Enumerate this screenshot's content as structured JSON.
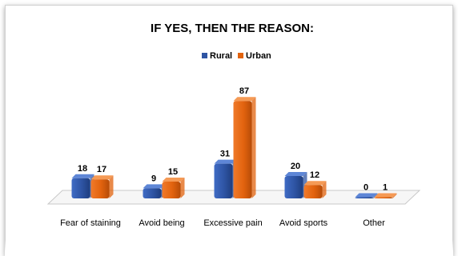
{
  "chart_data": {
    "type": "bar",
    "title": "IF YES, THEN THE REASON:",
    "categories": [
      "Fear of staining",
      "Avoid being",
      "Excessive pain",
      "Avoid sports",
      "Other"
    ],
    "series": [
      {
        "name": "Rural",
        "values": [
          18,
          9,
          31,
          20,
          0
        ],
        "color": "#2E54A3"
      },
      {
        "name": "Urban",
        "values": [
          17,
          15,
          87,
          12,
          1
        ],
        "color": "#E2630E"
      }
    ],
    "ylim": [
      0,
      90
    ],
    "grid": false,
    "legend": "top-center"
  }
}
